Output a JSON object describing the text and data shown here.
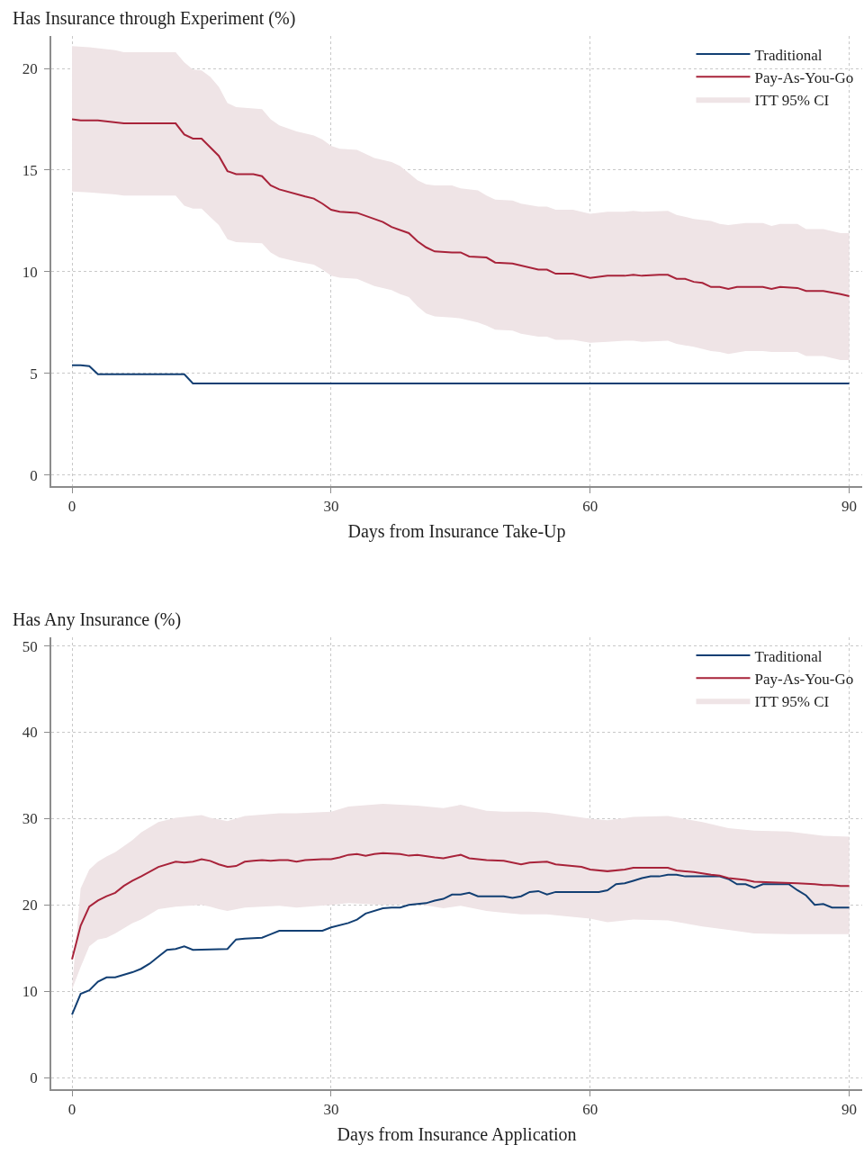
{
  "chart_data": [
    {
      "type": "line",
      "ylabel": "Has Insurance through Experiment (%)",
      "xlabel": "Days from Insurance Take-Up",
      "xlim": [
        -2.4,
        91.5
      ],
      "ylim": [
        -0.55,
        21.6
      ],
      "xticks": [
        0,
        30,
        60,
        90
      ],
      "yticks": [
        0,
        5,
        10,
        15,
        20
      ],
      "grid": true,
      "legend": "top right",
      "line_style": "solid",
      "marker": "none",
      "series": [
        {
          "type": "area",
          "name": "ITT 95% CI",
          "color": "#efe4e6",
          "x": [
            0,
            2,
            5,
            6,
            12,
            13,
            14,
            15,
            16,
            17,
            18,
            19,
            22,
            23,
            24,
            26,
            28,
            29,
            30,
            31,
            33,
            35,
            37,
            38,
            39,
            40,
            41,
            42,
            44,
            45,
            47,
            48,
            49,
            51,
            52,
            54,
            55,
            56,
            58,
            60,
            62,
            64,
            65,
            66,
            69,
            70,
            72,
            74,
            75,
            76,
            78,
            80,
            81,
            82,
            84,
            85,
            87,
            89,
            90
          ],
          "values": [
            null,
            null,
            null,
            null,
            null,
            null,
            null,
            null,
            null,
            null,
            null,
            null,
            null,
            null,
            null,
            null,
            null,
            null,
            null,
            null,
            null,
            null,
            null,
            null,
            null,
            null,
            null,
            null,
            null,
            null,
            null,
            null,
            null,
            null,
            null,
            null,
            null,
            null,
            null,
            null,
            null,
            null,
            null,
            null,
            null,
            null,
            null,
            null,
            null,
            null,
            null,
            null,
            null,
            null,
            null,
            null,
            null,
            null,
            null
          ],
          "upper": [
            21.1,
            21.05,
            20.9,
            20.8,
            20.8,
            20.3,
            19.95,
            19.9,
            19.6,
            19.1,
            18.3,
            18.1,
            18.0,
            17.5,
            17.2,
            16.9,
            16.7,
            16.5,
            16.2,
            16.05,
            16.0,
            15.6,
            15.4,
            15.2,
            14.85,
            14.5,
            14.3,
            14.25,
            14.25,
            14.1,
            14.0,
            13.75,
            13.55,
            13.5,
            13.35,
            13.2,
            13.2,
            13.05,
            13.05,
            12.85,
            12.95,
            12.95,
            13.0,
            12.95,
            13.0,
            12.8,
            12.6,
            12.5,
            12.35,
            12.3,
            12.4,
            12.4,
            12.25,
            12.35,
            12.35,
            12.1,
            12.1,
            11.9,
            11.9
          ],
          "lower": [
            13.95,
            13.9,
            13.8,
            13.75,
            13.75,
            13.25,
            13.1,
            13.1,
            12.7,
            12.3,
            11.6,
            11.45,
            11.4,
            10.95,
            10.7,
            10.5,
            10.35,
            10.1,
            9.8,
            9.7,
            9.65,
            9.3,
            9.1,
            8.9,
            8.75,
            8.3,
            7.95,
            7.8,
            7.75,
            7.7,
            7.5,
            7.35,
            7.15,
            7.1,
            6.95,
            6.8,
            6.8,
            6.65,
            6.65,
            6.5,
            6.55,
            6.6,
            6.6,
            6.55,
            6.6,
            6.45,
            6.3,
            6.1,
            6.05,
            5.95,
            6.1,
            6.1,
            6.05,
            6.05,
            6.05,
            5.85,
            5.85,
            5.65,
            5.65
          ]
        },
        {
          "name": "Traditional",
          "color": "#123f73",
          "x": [
            0,
            1,
            2,
            3,
            13,
            14,
            90
          ],
          "values": [
            5.4,
            5.4,
            5.35,
            4.95,
            4.95,
            4.5,
            4.5
          ]
        },
        {
          "name": "Pay-As-You-Go",
          "color": "#a8233a",
          "x": [
            0,
            1,
            3,
            6,
            12,
            13,
            14,
            15,
            17,
            18,
            19,
            21,
            22,
            23,
            24,
            27,
            28,
            29,
            30,
            31,
            33,
            36,
            37,
            39,
            40,
            41,
            42,
            44,
            45,
            46,
            48,
            49,
            51,
            54,
            55,
            56,
            58,
            60,
            62,
            64,
            65,
            66,
            68,
            69,
            70,
            71,
            72,
            73,
            74,
            75,
            76,
            77,
            80,
            81,
            82,
            84,
            85,
            87,
            89,
            90
          ],
          "values": [
            17.5,
            17.45,
            17.45,
            17.3,
            17.3,
            16.75,
            16.55,
            16.55,
            15.7,
            14.95,
            14.8,
            14.8,
            14.7,
            14.25,
            14.05,
            13.7,
            13.6,
            13.35,
            13.05,
            12.95,
            12.9,
            12.45,
            12.2,
            11.9,
            11.5,
            11.2,
            11.0,
            10.95,
            10.95,
            10.75,
            10.7,
            10.45,
            10.4,
            10.1,
            10.1,
            9.9,
            9.9,
            9.7,
            9.8,
            9.8,
            9.85,
            9.8,
            9.85,
            9.85,
            9.65,
            9.65,
            9.5,
            9.45,
            9.25,
            9.25,
            9.15,
            9.25,
            9.25,
            9.15,
            9.25,
            9.2,
            9.05,
            9.05,
            8.9,
            8.8
          ]
        }
      ]
    },
    {
      "type": "line",
      "ylabel": "Has Any Insurance (%)",
      "xlabel": "Days from Insurance Application",
      "xlim": [
        -2.4,
        91.5
      ],
      "ylim": [
        -1.35,
        51.0
      ],
      "xticks": [
        0,
        30,
        60,
        90
      ],
      "yticks": [
        0,
        10,
        20,
        30,
        40,
        50
      ],
      "grid": true,
      "legend": "top right",
      "line_style": "solid",
      "marker": "none",
      "series": [
        {
          "type": "area",
          "name": "ITT 95% CI",
          "color": "#efe4e6",
          "x": [
            0,
            1,
            2,
            3,
            4,
            5,
            7,
            8,
            10,
            12,
            15,
            16,
            17,
            18,
            20,
            24,
            26,
            30,
            32,
            36,
            40,
            43,
            45,
            48,
            50,
            52,
            53,
            55,
            60,
            62,
            65,
            69,
            73,
            76,
            79,
            83,
            87,
            90
          ],
          "values": [
            null,
            null,
            null,
            null,
            null,
            null,
            null,
            null,
            null,
            null,
            null,
            null,
            null,
            null,
            null,
            null,
            null,
            null,
            null,
            null,
            null,
            null,
            null,
            null,
            null,
            null,
            null,
            null,
            null,
            null,
            null,
            null,
            null,
            null,
            null,
            null,
            null,
            null
          ],
          "upper": [
            10.4,
            21.9,
            24.1,
            25.0,
            25.6,
            26.1,
            27.5,
            28.4,
            29.6,
            30.1,
            30.4,
            30.1,
            29.9,
            29.7,
            30.3,
            30.6,
            30.6,
            30.8,
            31.4,
            31.7,
            31.5,
            31.2,
            31.6,
            30.9,
            30.8,
            30.8,
            30.8,
            30.7,
            30.0,
            29.8,
            30.2,
            30.3,
            29.6,
            28.9,
            28.6,
            28.5,
            28.0,
            27.9
          ],
          "lower": [
            10.2,
            12.8,
            15.2,
            16.0,
            16.2,
            16.7,
            17.9,
            18.3,
            19.5,
            19.8,
            20.0,
            19.8,
            19.5,
            19.3,
            19.7,
            19.9,
            19.7,
            20.0,
            20.2,
            20.0,
            20.1,
            19.6,
            19.9,
            19.3,
            19.1,
            18.9,
            18.9,
            18.9,
            18.4,
            18.0,
            18.3,
            18.2,
            17.5,
            17.1,
            16.7,
            16.6,
            16.6,
            16.6
          ]
        },
        {
          "name": "Traditional",
          "color": "#123f73",
          "x": [
            0,
            1,
            2,
            3,
            4,
            5,
            7,
            8,
            9,
            10,
            11,
            12,
            13,
            14,
            18,
            19,
            20,
            22,
            23,
            24,
            29,
            30,
            32,
            33,
            34,
            36,
            37,
            38,
            39,
            41,
            42,
            43,
            44,
            45,
            46,
            47,
            50,
            51,
            52,
            53,
            54,
            55,
            56,
            61,
            62,
            63,
            64,
            65,
            66,
            67,
            68,
            69,
            70,
            71,
            75,
            76,
            77,
            78,
            79,
            80,
            83,
            84,
            85,
            86,
            87,
            88,
            90
          ],
          "values": [
            7.3,
            9.7,
            10.1,
            11.1,
            11.6,
            11.6,
            12.2,
            12.6,
            13.2,
            14.0,
            14.8,
            14.9,
            15.2,
            14.8,
            14.9,
            16.0,
            16.1,
            16.2,
            16.6,
            17.0,
            17.0,
            17.4,
            17.9,
            18.3,
            19.0,
            19.6,
            19.7,
            19.7,
            20.0,
            20.2,
            20.5,
            20.7,
            21.2,
            21.2,
            21.4,
            21.0,
            21.0,
            20.8,
            21.0,
            21.5,
            21.6,
            21.2,
            21.5,
            21.5,
            21.7,
            22.4,
            22.5,
            22.8,
            23.1,
            23.3,
            23.3,
            23.5,
            23.5,
            23.3,
            23.3,
            23.0,
            22.4,
            22.4,
            22.0,
            22.4,
            22.4,
            21.7,
            21.1,
            20.0,
            20.1,
            19.7,
            19.7
          ]
        },
        {
          "name": "Pay-As-You-Go",
          "color": "#a8233a",
          "x": [
            0,
            1,
            2,
            3,
            4,
            5,
            6,
            7,
            8,
            10,
            12,
            13,
            14,
            15,
            16,
            17,
            18,
            19,
            20,
            21,
            22,
            23,
            24,
            25,
            26,
            27,
            29,
            30,
            31,
            32,
            33,
            34,
            35,
            36,
            38,
            39,
            40,
            42,
            43,
            44,
            45,
            46,
            48,
            50,
            52,
            53,
            55,
            56,
            59,
            60,
            62,
            64,
            65,
            69,
            70,
            72,
            74,
            75,
            76,
            78,
            79,
            81,
            84,
            86,
            87,
            88,
            89,
            90
          ],
          "values": [
            13.7,
            17.6,
            19.8,
            20.5,
            21.0,
            21.4,
            22.2,
            22.8,
            23.3,
            24.4,
            25.0,
            24.9,
            25.0,
            25.3,
            25.1,
            24.7,
            24.4,
            24.5,
            25.0,
            25.1,
            25.2,
            25.1,
            25.2,
            25.2,
            25.0,
            25.2,
            25.3,
            25.3,
            25.5,
            25.8,
            25.9,
            25.7,
            25.9,
            26.0,
            25.9,
            25.7,
            25.8,
            25.5,
            25.4,
            25.6,
            25.8,
            25.4,
            25.2,
            25.1,
            24.7,
            24.9,
            25.0,
            24.7,
            24.4,
            24.1,
            23.9,
            24.1,
            24.3,
            24.3,
            24.0,
            23.8,
            23.5,
            23.4,
            23.1,
            22.9,
            22.7,
            22.6,
            22.5,
            22.4,
            22.3,
            22.3,
            22.2,
            22.2
          ]
        }
      ]
    }
  ]
}
